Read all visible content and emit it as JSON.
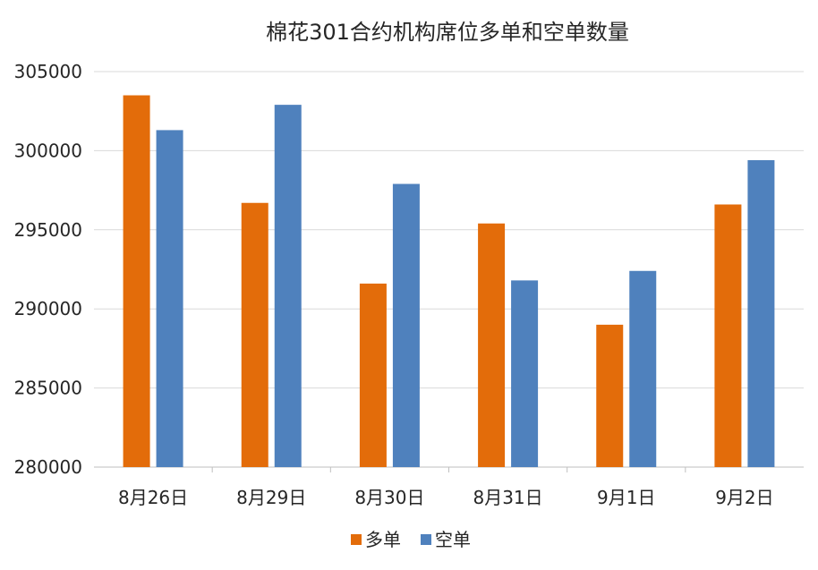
{
  "chart_data": {
    "type": "bar",
    "title": "棉花301合约机构席位多单和空单数量",
    "categories": [
      "8月26日",
      "8月29日",
      "8月30日",
      "8月31日",
      "9月1日",
      "9月2日"
    ],
    "series": [
      {
        "name": "多单",
        "color": "#E36C0A",
        "values": [
          303500,
          296700,
          291600,
          295400,
          289000,
          296600
        ]
      },
      {
        "name": "空单",
        "color": "#4F81BD",
        "values": [
          301300,
          302900,
          297900,
          291800,
          292400,
          299400
        ]
      }
    ],
    "ylim": [
      280000,
      305000
    ],
    "yticks": [
      "280000",
      "285000",
      "290000",
      "295000",
      "300000",
      "305000"
    ],
    "xlabel": "",
    "ylabel": "",
    "grid": true,
    "legend": "bottom"
  }
}
